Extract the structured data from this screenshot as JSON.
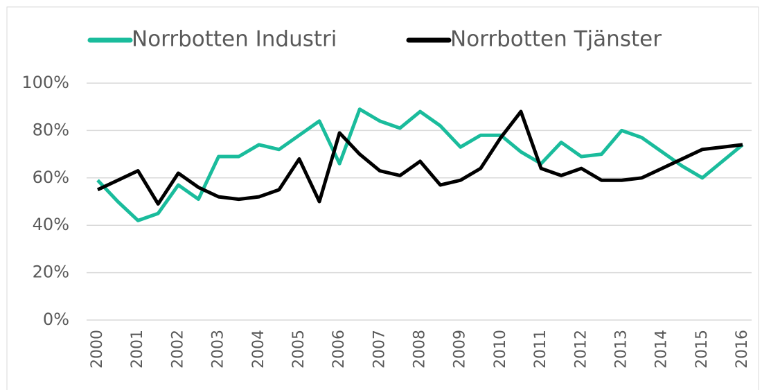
{
  "chart_data": {
    "type": "line",
    "categories": [
      "2000",
      null,
      "2001",
      null,
      "2002",
      null,
      "2003",
      null,
      "2004",
      null,
      "2005",
      null,
      "2006",
      null,
      "2007",
      null,
      "2008",
      null,
      "2009",
      null,
      "2010",
      null,
      "2011",
      null,
      "2012",
      null,
      "2013",
      null,
      "2014",
      null,
      "2015",
      null,
      "2016"
    ],
    "series": [
      {
        "name": "Norrbotten Industri",
        "color": "#1abc9c",
        "values": [
          59,
          50,
          42,
          45,
          57,
          51,
          69,
          69,
          74,
          72,
          78,
          84,
          66,
          89,
          84,
          81,
          88,
          82,
          73,
          78,
          78,
          71,
          66,
          75,
          69,
          70,
          80,
          77,
          71,
          65,
          60,
          67,
          74
        ]
      },
      {
        "name": "Norrbotten Tjänster",
        "color": "#000000",
        "values": [
          55,
          59,
          63,
          49,
          62,
          56,
          52,
          51,
          52,
          55,
          68,
          50,
          79,
          70,
          63,
          61,
          67,
          57,
          59,
          64,
          77,
          88,
          64,
          61,
          64,
          59,
          59,
          60,
          64,
          68,
          72,
          73,
          74
        ]
      }
    ],
    "ylim": [
      0,
      100
    ],
    "yticks": [
      {
        "value": 0,
        "label": "0%"
      },
      {
        "value": 20,
        "label": "20%"
      },
      {
        "value": 40,
        "label": "40%"
      },
      {
        "value": 60,
        "label": "60%"
      },
      {
        "value": 80,
        "label": "80%"
      },
      {
        "value": 100,
        "label": "100%"
      }
    ],
    "grid": true,
    "legend": "top"
  }
}
